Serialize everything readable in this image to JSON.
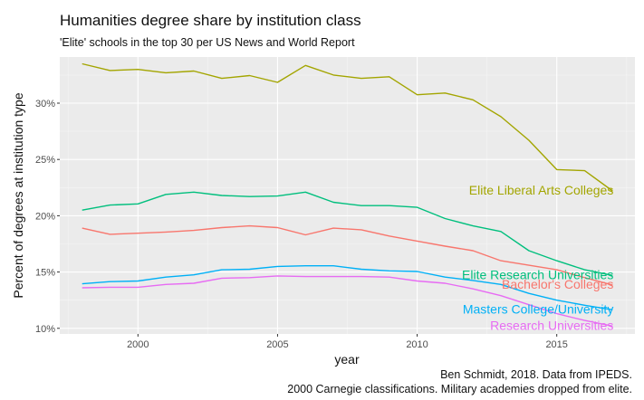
{
  "chart_data": {
    "type": "line",
    "title": "Humanities degree share by institution class",
    "subtitle": "'Elite' schools in the top 30 per US News and World Report",
    "xlabel": "year",
    "ylabel": "Percent of degrees at institution type",
    "caption": [
      "Ben Schmidt, 2018. Data from IPEDS.",
      "2000 Carnegie classifications. Military academies dropped from elite."
    ],
    "xlim": [
      1997.2,
      2017.8
    ],
    "ylim": [
      9.5,
      34.1
    ],
    "x_ticks": [
      2000,
      2005,
      2010,
      2015
    ],
    "x_minor_ticks": [
      1997.5,
      2002.5,
      2007.5,
      2012.5,
      2017.5
    ],
    "y_ticks": [
      {
        "value": 10,
        "label": "10%"
      },
      {
        "value": 15,
        "label": "15%"
      },
      {
        "value": 20,
        "label": "20%"
      },
      {
        "value": 25,
        "label": "25%"
      },
      {
        "value": 30,
        "label": "30%"
      }
    ],
    "y_minor_ticks": [
      12.5,
      17.5,
      22.5,
      27.5,
      32.5
    ],
    "grid": true,
    "legend": "direct labels at line ends",
    "x": [
      1998,
      1999,
      2000,
      2001,
      2002,
      2003,
      2004,
      2005,
      2006,
      2007,
      2008,
      2009,
      2010,
      2011,
      2012,
      2013,
      2014,
      2015,
      2016,
      2017
    ],
    "series": [
      {
        "name": "Elite Liberal Arts Colleges",
        "color": "#A3A500",
        "values": [
          33.5,
          32.9,
          33.0,
          32.7,
          32.85,
          32.2,
          32.45,
          31.85,
          33.35,
          32.5,
          32.2,
          32.35,
          30.75,
          30.9,
          30.3,
          28.8,
          26.7,
          24.1,
          24.0,
          22.2
        ]
      },
      {
        "name": "Elite Research Universities",
        "color": "#00BF7D",
        "values": [
          20.5,
          20.95,
          21.05,
          21.9,
          22.1,
          21.8,
          21.7,
          21.75,
          22.1,
          21.2,
          20.9,
          20.9,
          20.75,
          19.75,
          19.1,
          18.6,
          16.9,
          16.0,
          15.2,
          14.7
        ]
      },
      {
        "name": "Bachelor's Colleges",
        "color": "#F8766D",
        "values": [
          18.9,
          18.35,
          18.45,
          18.55,
          18.7,
          18.95,
          19.1,
          18.95,
          18.3,
          18.9,
          18.75,
          18.2,
          17.75,
          17.3,
          16.9,
          16.0,
          15.6,
          15.2,
          14.5,
          13.85
        ]
      },
      {
        "name": "Masters College/University",
        "color": "#00B0F6",
        "values": [
          13.95,
          14.15,
          14.2,
          14.55,
          14.75,
          15.2,
          15.25,
          15.5,
          15.55,
          15.55,
          15.25,
          15.1,
          15.05,
          14.55,
          14.25,
          13.9,
          13.1,
          12.5,
          12.05,
          11.65
        ]
      },
      {
        "name": "Research Universities",
        "color": "#E76BF3",
        "values": [
          13.6,
          13.65,
          13.65,
          13.9,
          14.0,
          14.45,
          14.5,
          14.65,
          14.6,
          14.6,
          14.6,
          14.55,
          14.2,
          14.0,
          13.5,
          12.9,
          12.1,
          11.3,
          10.7,
          10.2
        ]
      }
    ]
  }
}
